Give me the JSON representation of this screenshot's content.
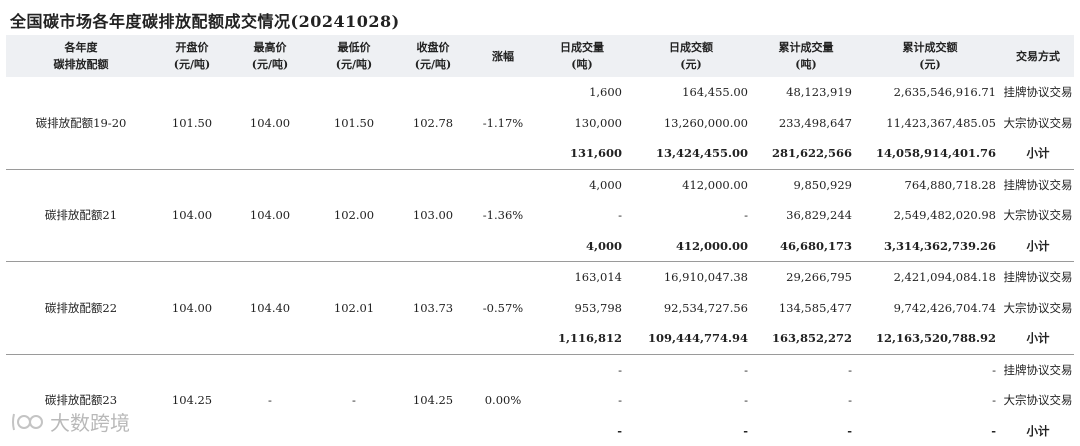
{
  "title": "全国碳市场各年度碳排放配额成交情况(20241028)",
  "headers": [
    {
      "line1": "各年度",
      "line2": "碳排放配额"
    },
    {
      "line1": "开盘价",
      "line2": "(元/吨)"
    },
    {
      "line1": "最高价",
      "line2": "(元/吨)"
    },
    {
      "line1": "最低价",
      "line2": "(元/吨)"
    },
    {
      "line1": "收盘价",
      "line2": "(元/吨)"
    },
    {
      "line1": "涨幅",
      "line2": ""
    },
    {
      "line1": "日成交量",
      "line2": "(吨)"
    },
    {
      "line1": "日成交额",
      "line2": "(元)"
    },
    {
      "line1": "累计成交量",
      "line2": "(吨)"
    },
    {
      "line1": "累计成交额",
      "line2": "(元)"
    },
    {
      "line1": "交易方式",
      "line2": ""
    }
  ],
  "groups": [
    {
      "name": "碳排放配额19-20",
      "open": "101.50",
      "high": "104.00",
      "low": "101.50",
      "close": "102.78",
      "change": "-1.17%",
      "rows": [
        {
          "vol": "1,600",
          "amt": "164,455.00",
          "cum_vol": "48,123,919",
          "cum_amt": "2,635,546,916.71",
          "method": "挂牌协议交易"
        },
        {
          "vol": "130,000",
          "amt": "13,260,000.00",
          "cum_vol": "233,498,647",
          "cum_amt": "11,423,367,485.05",
          "method": "大宗协议交易"
        },
        {
          "vol": "131,600",
          "amt": "13,424,455.00",
          "cum_vol": "281,622,566",
          "cum_amt": "14,058,914,401.76",
          "method": "小计"
        }
      ]
    },
    {
      "name": "碳排放配额21",
      "open": "104.00",
      "high": "104.00",
      "low": "102.00",
      "close": "103.00",
      "change": "-1.36%",
      "rows": [
        {
          "vol": "4,000",
          "amt": "412,000.00",
          "cum_vol": "9,850,929",
          "cum_amt": "764,880,718.28",
          "method": "挂牌协议交易"
        },
        {
          "vol": "-",
          "amt": "-",
          "cum_vol": "36,829,244",
          "cum_amt": "2,549,482,020.98",
          "method": "大宗协议交易"
        },
        {
          "vol": "4,000",
          "amt": "412,000.00",
          "cum_vol": "46,680,173",
          "cum_amt": "3,314,362,739.26",
          "method": "小计"
        }
      ]
    },
    {
      "name": "碳排放配额22",
      "open": "104.00",
      "high": "104.40",
      "low": "102.01",
      "close": "103.73",
      "change": "-0.57%",
      "rows": [
        {
          "vol": "163,014",
          "amt": "16,910,047.38",
          "cum_vol": "29,266,795",
          "cum_amt": "2,421,094,084.18",
          "method": "挂牌协议交易"
        },
        {
          "vol": "953,798",
          "amt": "92,534,727.56",
          "cum_vol": "134,585,477",
          "cum_amt": "9,742,426,704.74",
          "method": "大宗协议交易"
        },
        {
          "vol": "1,116,812",
          "amt": "109,444,774.94",
          "cum_vol": "163,852,272",
          "cum_amt": "12,163,520,788.92",
          "method": "小计"
        }
      ]
    },
    {
      "name": "碳排放配额23",
      "open": "104.25",
      "high": "-",
      "low": "-",
      "close": "104.25",
      "change": "0.00%",
      "rows": [
        {
          "vol": "-",
          "amt": "-",
          "cum_vol": "-",
          "cum_amt": "-",
          "method": "挂牌协议交易"
        },
        {
          "vol": "-",
          "amt": "-",
          "cum_vol": "-",
          "cum_amt": "-",
          "method": "大宗协议交易"
        },
        {
          "vol": "-",
          "amt": "-",
          "cum_vol": "-",
          "cum_amt": "-",
          "method": "小计"
        }
      ]
    }
  ],
  "watermark": {
    "text": "大数跨境",
    "icon": "kk-logo-icon"
  }
}
